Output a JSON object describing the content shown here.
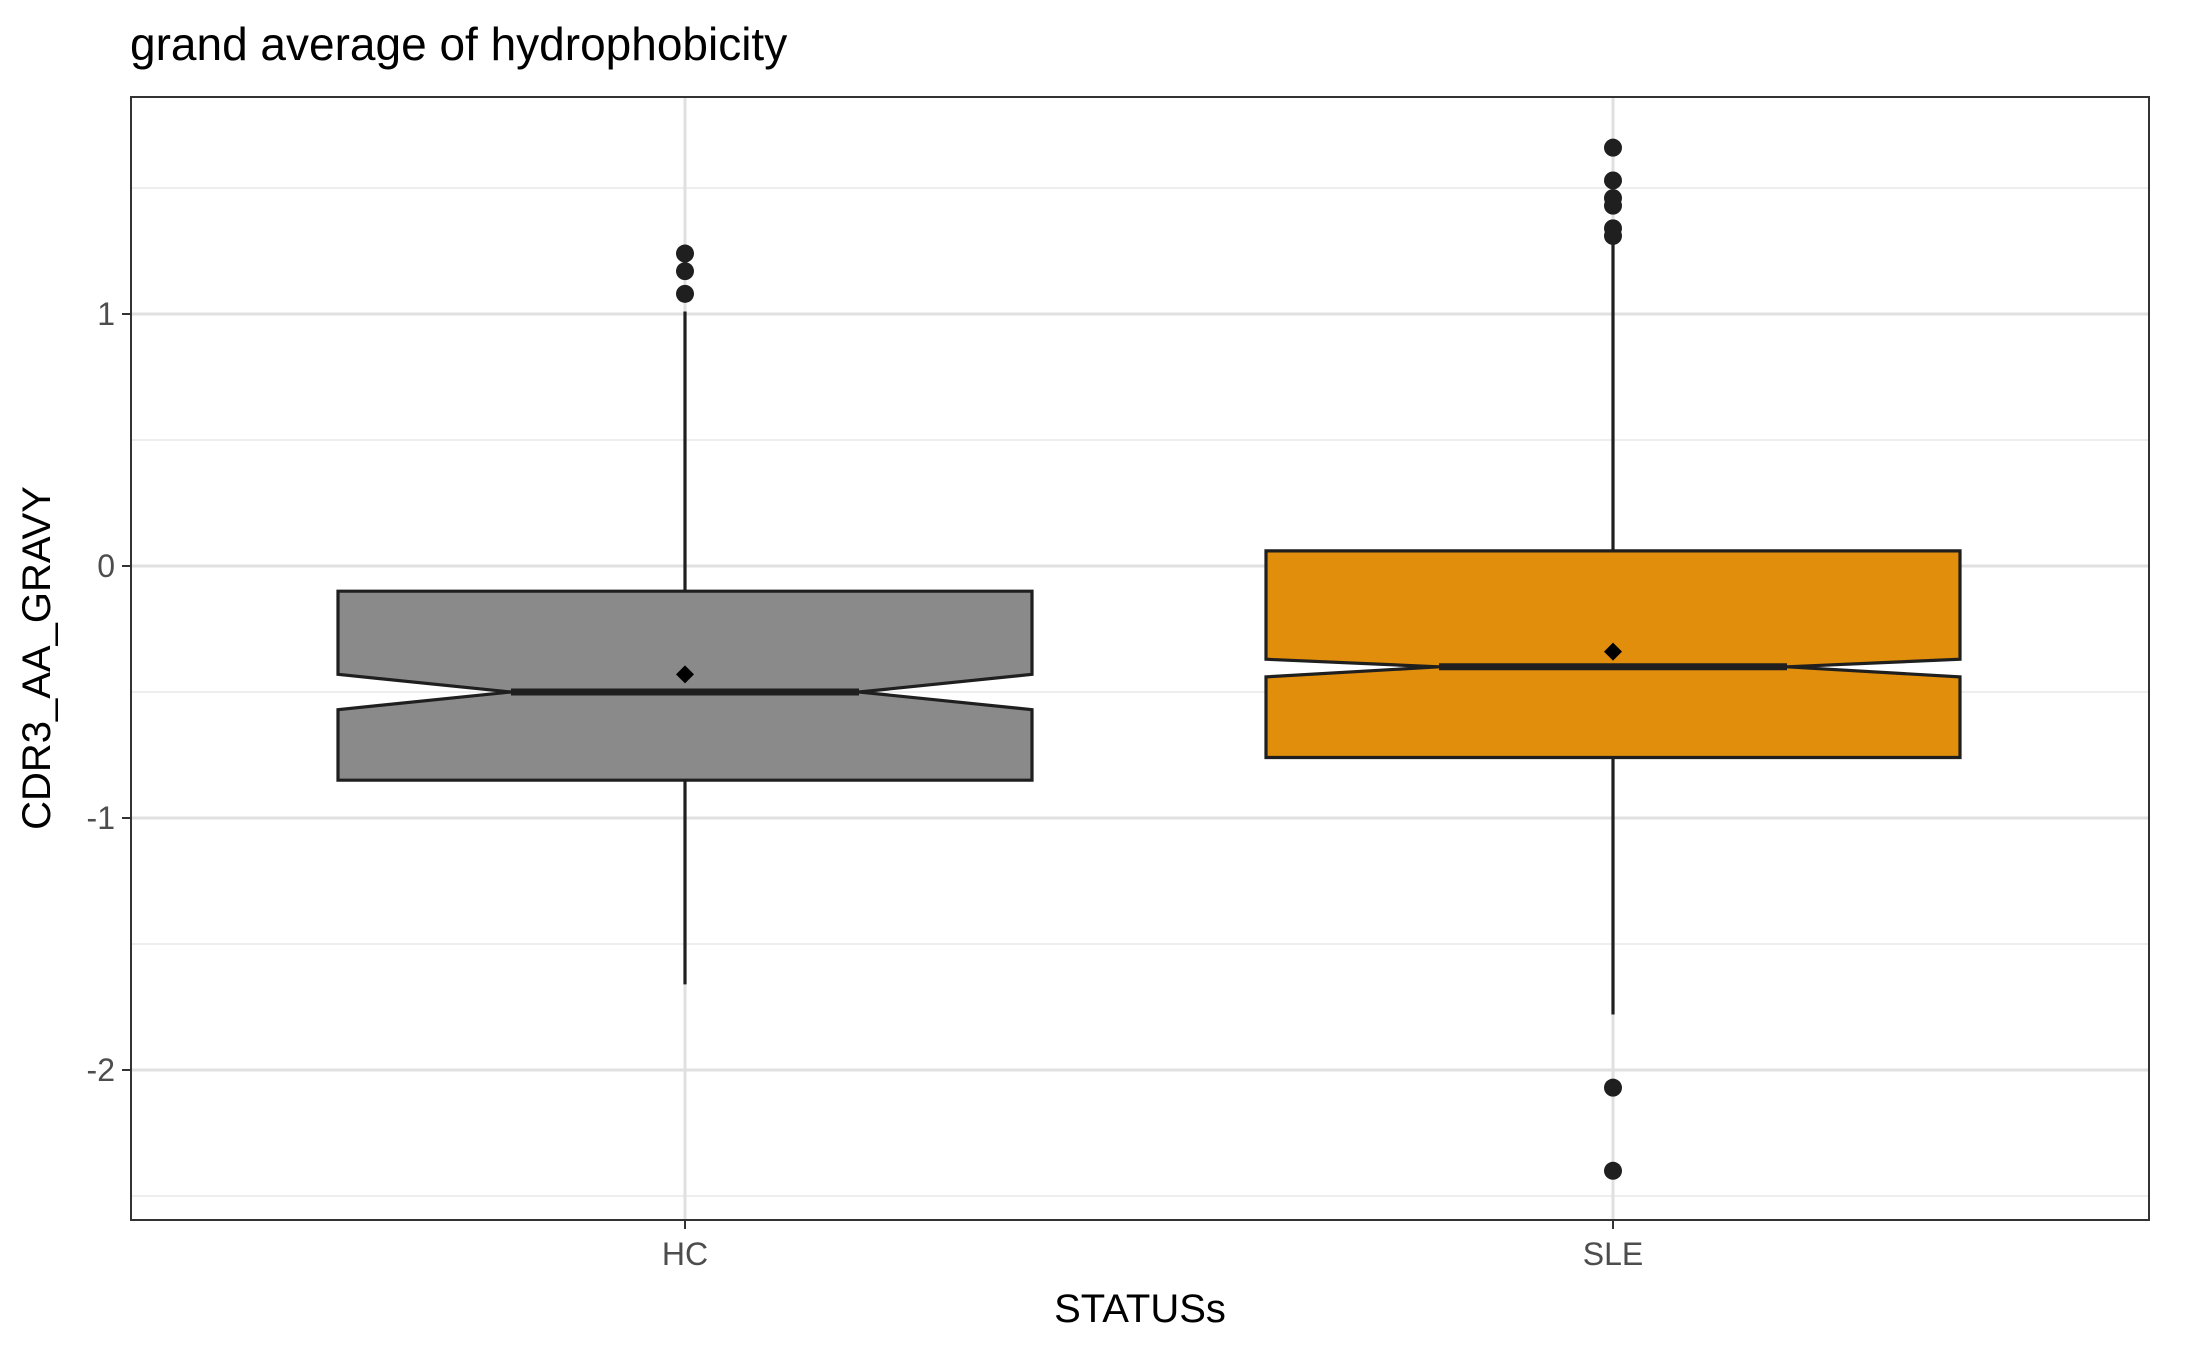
{
  "chart_data": {
    "type": "boxplot",
    "title": "grand average of hydrophobicity",
    "xlabel": "STATUSs",
    "ylabel": "CDR3_AA_GRAVY",
    "categories": [
      "HC",
      "SLE"
    ],
    "ylim": [
      -2.6,
      1.85
    ],
    "yticks": [
      -2,
      -1,
      0,
      1
    ],
    "ytick_labels": [
      "-2",
      "-1",
      "0",
      "1"
    ],
    "grid": true,
    "notched": true,
    "boxes": [
      {
        "category": "HC",
        "fill": "#8a8a8a",
        "whisker_low": -1.66,
        "q1": -0.85,
        "median": -0.5,
        "q3": -0.1,
        "whisker_high": 1.01,
        "notch_low": -0.57,
        "notch_high": -0.43,
        "mean": -0.43,
        "outliers": [
          1.24,
          1.17,
          1.08
        ]
      },
      {
        "category": "SLE",
        "fill": "#e08e0b",
        "whisker_low": -1.78,
        "q1": -0.76,
        "median": -0.4,
        "q3": 0.06,
        "whisker_high": 1.29,
        "notch_low": -0.44,
        "notch_high": -0.37,
        "mean": -0.34,
        "outliers": [
          1.66,
          1.53,
          1.46,
          1.43,
          1.34,
          1.31,
          -2.07,
          -2.4
        ]
      }
    ]
  }
}
